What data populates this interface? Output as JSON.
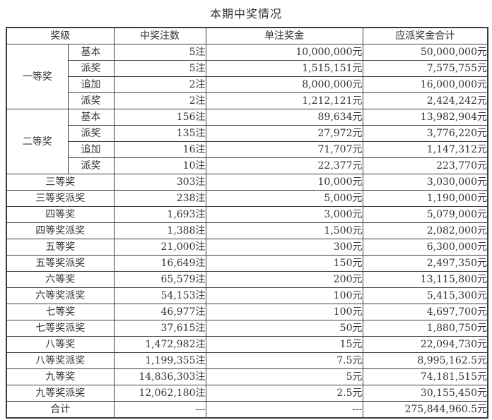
{
  "title": "本期中奖情况",
  "colors": {
    "text": "#333333",
    "border": "#3c3c3c",
    "background": "#ffffff"
  },
  "table": {
    "headers": [
      "奖级",
      "中奖注数",
      "单注奖金",
      "应派奖金合计"
    ],
    "groups": [
      {
        "name": "一等奖",
        "rows": [
          {
            "sub": "基本",
            "count": "5注",
            "per_bet": "10,000,000元",
            "total": "50,000,000元"
          },
          {
            "sub": "派奖",
            "count": "5注",
            "per_bet": "1,515,151元",
            "total": "7,575,755元"
          },
          {
            "sub": "追加",
            "count": "2注",
            "per_bet": "8,000,000元",
            "total": "16,000,000元"
          },
          {
            "sub": "派奖",
            "count": "2注",
            "per_bet": "1,212,121元",
            "total": "2,424,242元"
          }
        ]
      },
      {
        "name": "二等奖",
        "rows": [
          {
            "sub": "基本",
            "count": "156注",
            "per_bet": "89,634元",
            "total": "13,982,904元"
          },
          {
            "sub": "派奖",
            "count": "135注",
            "per_bet": "27,972元",
            "total": "3,776,220元"
          },
          {
            "sub": "追加",
            "count": "16注",
            "per_bet": "71,707元",
            "total": "1,147,312元"
          },
          {
            "sub": "派奖",
            "count": "10注",
            "per_bet": "22,377元",
            "total": "223,770元"
          }
        ]
      }
    ],
    "rows": [
      {
        "name": "三等奖",
        "count": "303注",
        "per_bet": "10,000元",
        "total": "3,030,000元"
      },
      {
        "name": "三等奖派奖",
        "count": "238注",
        "per_bet": "5,000元",
        "total": "1,190,000元"
      },
      {
        "name": "四等奖",
        "count": "1,693注",
        "per_bet": "3,000元",
        "total": "5,079,000元"
      },
      {
        "name": "四等奖派奖",
        "count": "1,388注",
        "per_bet": "1,500元",
        "total": "2,082,000元"
      },
      {
        "name": "五等奖",
        "count": "21,000注",
        "per_bet": "300元",
        "total": "6,300,000元"
      },
      {
        "name": "五等奖派奖",
        "count": "16,649注",
        "per_bet": "150元",
        "total": "2,497,350元"
      },
      {
        "name": "六等奖",
        "count": "65,579注",
        "per_bet": "200元",
        "total": "13,115,800元"
      },
      {
        "name": "六等奖派奖",
        "count": "54,153注",
        "per_bet": "100元",
        "total": "5,415,300元"
      },
      {
        "name": "七等奖",
        "count": "46,977注",
        "per_bet": "100元",
        "total": "4,697,700元"
      },
      {
        "name": "七等奖派奖",
        "count": "37,615注",
        "per_bet": "50元",
        "total": "1,880,750元"
      },
      {
        "name": "八等奖",
        "count": "1,472,982注",
        "per_bet": "15元",
        "total": "22,094,730元"
      },
      {
        "name": "八等奖派奖",
        "count": "1,199,355注",
        "per_bet": "7.5元",
        "total": "8,995,162.5元"
      },
      {
        "name": "九等奖",
        "count": "14,836,303注",
        "per_bet": "5元",
        "total": "74,181,515元"
      },
      {
        "name": "九等奖派奖",
        "count": "12,062,180注",
        "per_bet": "2.5元",
        "total": "30,155,450元"
      },
      {
        "name": "合计",
        "count": "---",
        "per_bet": "---",
        "total": "275,844,960.5元"
      }
    ]
  }
}
